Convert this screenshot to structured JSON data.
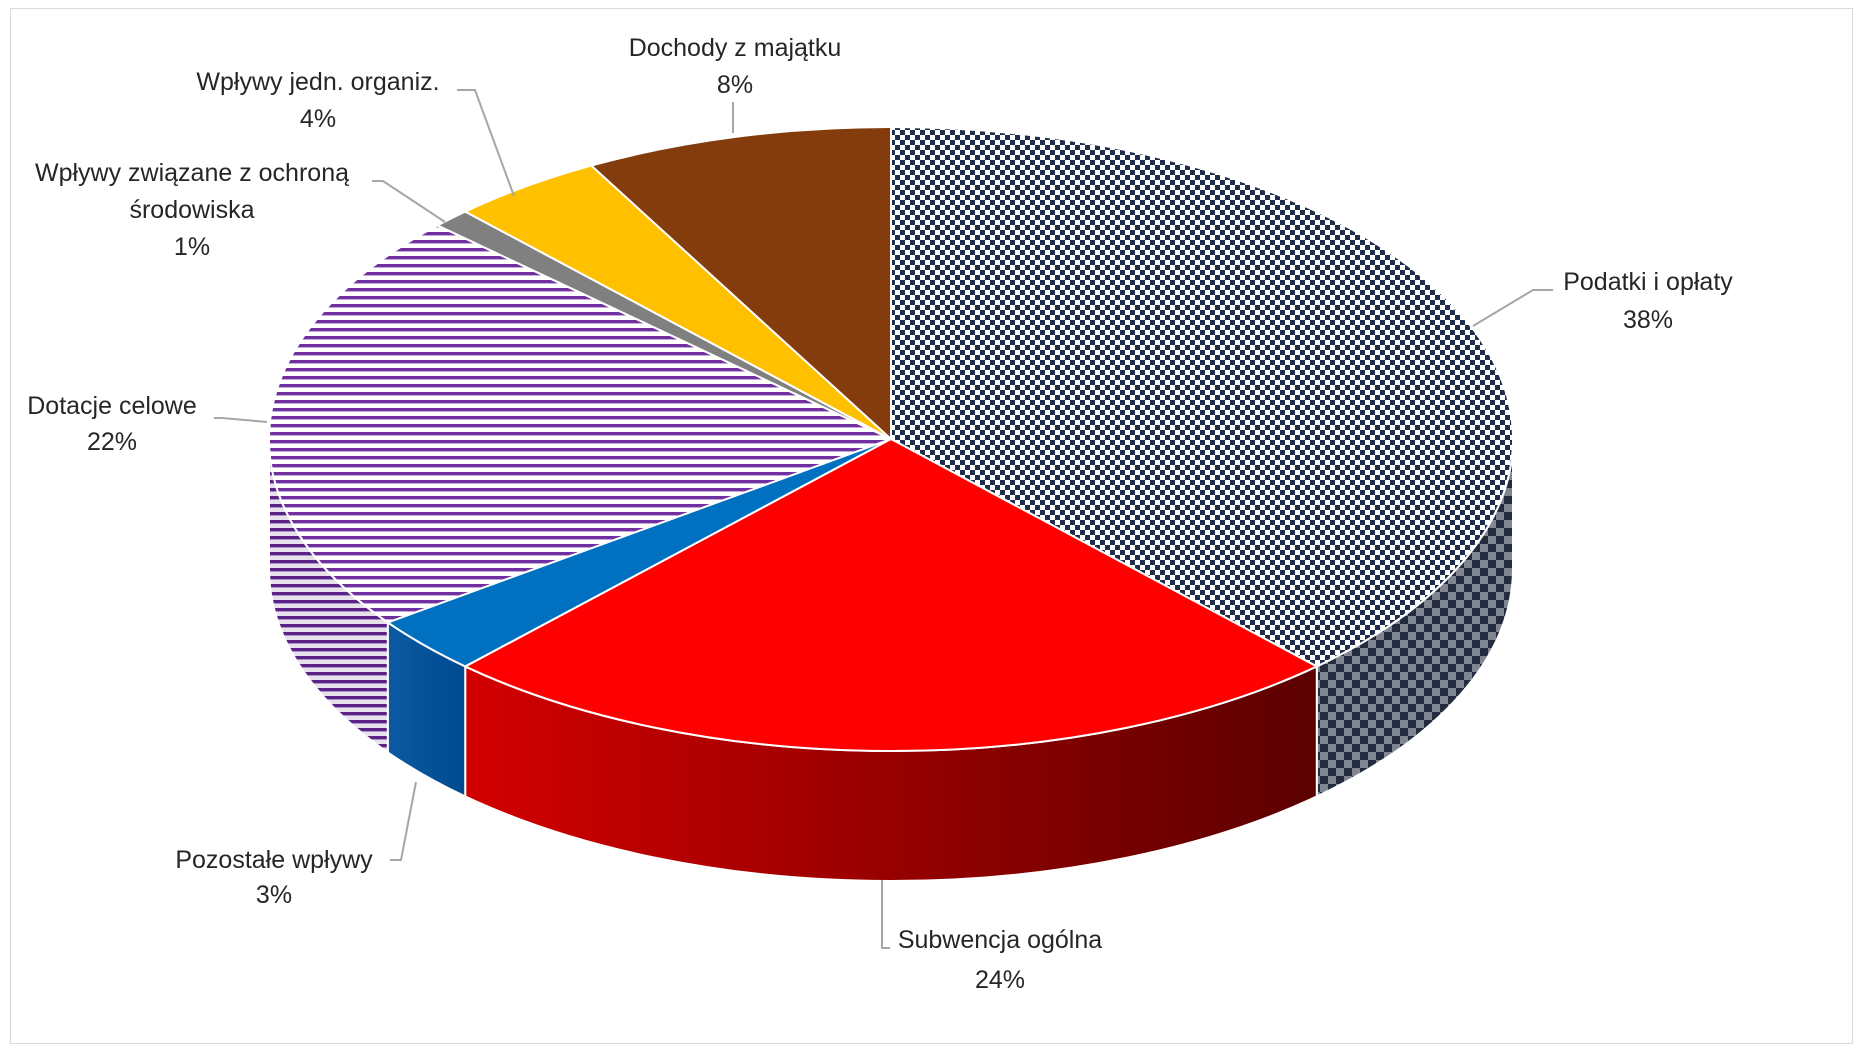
{
  "chart_data": {
    "type": "pie",
    "style": "3d",
    "title": "",
    "slices": [
      {
        "label": "Podatki i opłaty",
        "line2": "",
        "percent_label": "38%",
        "value": 38,
        "color": "#1f2d4d",
        "fill": "checker"
      },
      {
        "label": "Subwencja ogólna",
        "line2": "",
        "percent_label": "24%",
        "value": 24,
        "color": "#ff0000",
        "fill": "solid"
      },
      {
        "label": "Pozostałe wpływy",
        "line2": "",
        "percent_label": "3%",
        "value": 3,
        "color": "#0070c0",
        "fill": "solid"
      },
      {
        "label": "Dotacje celowe",
        "line2": "",
        "percent_label": "22%",
        "value": 22,
        "color": "#7030a0",
        "fill": "stripes"
      },
      {
        "label": "Wpływy związane z ochroną",
        "line2": "środowiska",
        "percent_label": "1%",
        "value": 1,
        "color": "#808080",
        "fill": "solid"
      },
      {
        "label": "Wpływy jedn. organiz.",
        "line2": "",
        "percent_label": "4%",
        "value": 4,
        "color": "#ffc000",
        "fill": "solid"
      },
      {
        "label": "Dochody z majątku",
        "line2": "",
        "percent_label": "8%",
        "value": 8,
        "color": "#843c0c",
        "fill": "solid"
      }
    ]
  }
}
